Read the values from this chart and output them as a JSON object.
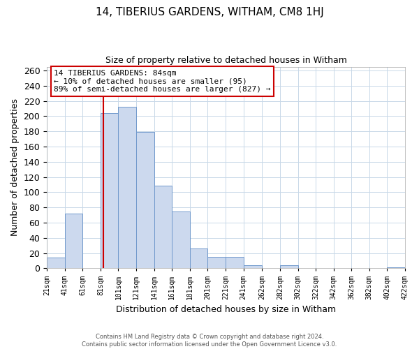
{
  "title": "14, TIBERIUS GARDENS, WITHAM, CM8 1HJ",
  "subtitle": "Size of property relative to detached houses in Witham",
  "xlabel": "Distribution of detached houses by size in Witham",
  "ylabel": "Number of detached properties",
  "bar_edges": [
    21,
    41,
    61,
    81,
    101,
    121,
    141,
    161,
    181,
    201,
    221,
    241,
    262,
    282,
    302,
    322,
    342,
    362,
    382,
    402,
    422
  ],
  "bar_heights": [
    14,
    72,
    0,
    204,
    212,
    179,
    109,
    75,
    26,
    15,
    15,
    4,
    0,
    4,
    0,
    0,
    0,
    0,
    0,
    1
  ],
  "bar_color": "#ccd9ee",
  "bar_edge_color": "#7099cc",
  "vline_x": 84,
  "vline_color": "#cc0000",
  "ylim": [
    0,
    265
  ],
  "annotation_title": "14 TIBERIUS GARDENS: 84sqm",
  "annotation_line1": "← 10% of detached houses are smaller (95)",
  "annotation_line2": "89% of semi-detached houses are larger (827) →",
  "annotation_box_color": "#ffffff",
  "annotation_box_edge_color": "#cc0000",
  "footer_line1": "Contains HM Land Registry data © Crown copyright and database right 2024.",
  "footer_line2": "Contains public sector information licensed under the Open Government Licence v3.0.",
  "tick_labels": [
    "21sqm",
    "41sqm",
    "61sqm",
    "81sqm",
    "101sqm",
    "121sqm",
    "141sqm",
    "161sqm",
    "181sqm",
    "201sqm",
    "221sqm",
    "241sqm",
    "262sqm",
    "282sqm",
    "302sqm",
    "322sqm",
    "342sqm",
    "362sqm",
    "382sqm",
    "402sqm",
    "422sqm"
  ],
  "yticks": [
    0,
    20,
    40,
    60,
    80,
    100,
    120,
    140,
    160,
    180,
    200,
    220,
    240,
    260
  ]
}
